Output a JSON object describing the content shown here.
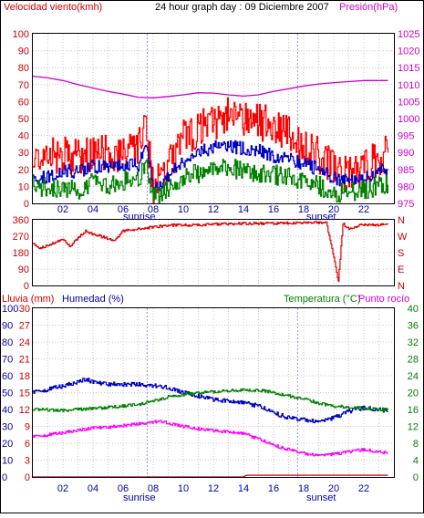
{
  "header": {
    "wind_label": "Velocidad viento(kmh)",
    "title": "24 hour graph day : 09 Diciembre 2007",
    "pressure_label": "Presión(hPa)"
  },
  "bottom_header": {
    "rain_label": "Lluvia (mm)",
    "humidity_label": "Humedad (%)",
    "temperature_label": "Temperatura (°C)",
    "dewpoint_label": "Punto rocío"
  },
  "sun_labels": {
    "sunrise": "sunrise",
    "sunset": "sunset"
  },
  "colors": {
    "wind_gust": "#ff0000",
    "wind_speed": "#0000c0",
    "wind_low": "#008000",
    "pressure": "#cc00cc",
    "direction": "#e00000",
    "humidity": "#0000c0",
    "temperature": "#008000",
    "dewpoint": "#ff00ff",
    "rain": "#c00000",
    "label_red": "#cc0000",
    "label_magenta": "#cc00cc",
    "label_blue": "#0000aa",
    "label_green": "#008000"
  },
  "chart_data": [
    {
      "id": "wind_pressure",
      "type": "line",
      "x_ticks": [
        "02",
        "04",
        "06",
        "08",
        "10",
        "12",
        "14",
        "16",
        "18",
        "20",
        "22"
      ],
      "x_tick_hours": [
        2,
        4,
        6,
        8,
        10,
        12,
        14,
        16,
        18,
        20,
        22
      ],
      "xlim": [
        0,
        24
      ],
      "y_left_ticks": [
        "0",
        "10",
        "20",
        "30",
        "40",
        "50",
        "60",
        "70",
        "80",
        "90",
        "100"
      ],
      "ylim_left": [
        0,
        100
      ],
      "y_right_ticks": [
        "975",
        "980",
        "985",
        "990",
        "995",
        "1000",
        "1005",
        "1010",
        "1015",
        "1020",
        "1025"
      ],
      "ylim_right": [
        975,
        1025
      ],
      "sunrise_hour": 7.6,
      "sunset_hour": 17.6,
      "grid": true,
      "series": [
        {
          "key": "gust",
          "axis": "left",
          "x": [
            0,
            1,
            2,
            3,
            4,
            5,
            6,
            7,
            7.5,
            8,
            9,
            10,
            11,
            12,
            13,
            14,
            15,
            16,
            17,
            18,
            19,
            20,
            21,
            22,
            23,
            23.6
          ],
          "values": [
            24,
            27,
            29,
            27,
            31,
            30,
            29,
            34,
            45,
            8,
            22,
            38,
            44,
            48,
            53,
            50,
            48,
            46,
            40,
            32,
            28,
            20,
            16,
            20,
            27,
            30
          ]
        },
        {
          "key": "speed",
          "axis": "left",
          "x": [
            0,
            1,
            2,
            3,
            4,
            5,
            6,
            7,
            7.5,
            8,
            9,
            10,
            11,
            12,
            13,
            14,
            15,
            16,
            17,
            18,
            19,
            20,
            21,
            22,
            23,
            23.6
          ],
          "values": [
            15,
            16,
            20,
            18,
            22,
            21,
            22,
            23,
            35,
            8,
            16,
            25,
            30,
            33,
            34,
            32,
            31,
            28,
            27,
            23,
            20,
            15,
            13,
            15,
            19,
            20
          ]
        },
        {
          "key": "low",
          "axis": "left",
          "x": [
            0,
            1,
            2,
            3,
            4,
            5,
            6,
            7,
            7.5,
            8,
            9,
            10,
            11,
            12,
            13,
            14,
            15,
            16,
            17,
            18,
            19,
            20,
            21,
            22,
            23,
            23.6
          ],
          "values": [
            10,
            8,
            10,
            7,
            12,
            11,
            13,
            14,
            22,
            3,
            9,
            15,
            18,
            20,
            21,
            19,
            18,
            17,
            15,
            12,
            10,
            7,
            6,
            8,
            10,
            11
          ]
        },
        {
          "key": "pressure",
          "axis": "right",
          "x": [
            0,
            1,
            2,
            3,
            4,
            5,
            6,
            7,
            8,
            9,
            10,
            11,
            12,
            13,
            14,
            15,
            16,
            17,
            18,
            19,
            20,
            21,
            22,
            23,
            23.6
          ],
          "values": [
            1012.5,
            1012,
            1011.2,
            1010,
            1009,
            1008,
            1007.2,
            1006.3,
            1006.1,
            1006.5,
            1007,
            1007.6,
            1007.5,
            1007,
            1006.6,
            1007,
            1008,
            1008.8,
            1009.6,
            1010.2,
            1010.6,
            1010.9,
            1011.2,
            1011.2,
            1011.2
          ]
        }
      ]
    },
    {
      "id": "wind_direction",
      "type": "line",
      "xlim": [
        0,
        24
      ],
      "y_ticks": [
        "360",
        "270",
        "180",
        "90",
        "0"
      ],
      "ylim": [
        0,
        360
      ],
      "compass_ticks": [
        "N",
        "W",
        "S",
        "E",
        "N"
      ],
      "grid": true,
      "series": [
        {
          "key": "direction",
          "x": [
            0,
            0.4,
            1,
            1.5,
            2,
            2.5,
            3,
            3.5,
            4,
            4.5,
            5,
            5.5,
            6,
            7,
            8,
            9,
            10,
            12,
            14,
            16,
            18,
            19.5,
            20,
            20.3,
            20.6,
            21,
            22,
            23,
            23.6
          ],
          "values": [
            230,
            200,
            220,
            235,
            250,
            215,
            260,
            300,
            280,
            270,
            255,
            250,
            300,
            310,
            320,
            330,
            330,
            335,
            340,
            340,
            345,
            345,
            150,
            20,
            340,
            310,
            335,
            330,
            335
          ]
        }
      ]
    },
    {
      "id": "temp_humidity_rain",
      "type": "line",
      "x_ticks": [
        "02",
        "04",
        "06",
        "08",
        "10",
        "12",
        "14",
        "16",
        "18",
        "20",
        "22"
      ],
      "x_tick_hours": [
        2,
        4,
        6,
        8,
        10,
        12,
        14,
        16,
        18,
        20,
        22
      ],
      "xlim": [
        0,
        24
      ],
      "y_humidity_ticks": [
        "0",
        "10",
        "20",
        "30",
        "40",
        "50",
        "60",
        "70",
        "80",
        "90",
        "100"
      ],
      "ylim_humidity": [
        0,
        100
      ],
      "y_rain_ticks": [
        "0",
        "3",
        "6",
        "9",
        "12",
        "15",
        "18",
        "21",
        "24",
        "27",
        "30"
      ],
      "ylim_rain": [
        0,
        30
      ],
      "y_temp_ticks": [
        "0",
        "4",
        "8",
        "12",
        "16",
        "20",
        "24",
        "28",
        "32",
        "36",
        "40"
      ],
      "ylim_temp": [
        0,
        40
      ],
      "sunrise_hour": 7.6,
      "sunset_hour": 17.6,
      "grid": true,
      "series": [
        {
          "key": "humidity",
          "axis": "humidity",
          "x": [
            0,
            1,
            2,
            3,
            3.5,
            4,
            5,
            6,
            7,
            8,
            9,
            10,
            11,
            12,
            13,
            14,
            15,
            16,
            17,
            18,
            19,
            20,
            21,
            22,
            23,
            23.6
          ],
          "values": [
            50,
            52,
            54,
            56,
            58,
            56,
            55,
            55,
            55,
            54,
            53,
            50,
            48,
            46,
            45,
            44,
            42,
            38,
            35,
            34,
            33,
            35,
            39,
            41,
            40,
            39
          ]
        },
        {
          "key": "temperature",
          "axis": "temp",
          "x": [
            0,
            1,
            2,
            3,
            4,
            5,
            6,
            7,
            8,
            9,
            10,
            11,
            12,
            13,
            14,
            15,
            16,
            17,
            18,
            19,
            20,
            21,
            22,
            23,
            23.6
          ],
          "values": [
            16,
            15.9,
            15.8,
            16,
            16.2,
            16.5,
            16.8,
            17.2,
            18,
            19,
            19.5,
            20,
            20.2,
            20.5,
            20.6,
            20.6,
            20,
            19.2,
            18.5,
            17.5,
            16.8,
            16.5,
            16.3,
            16,
            16
          ]
        },
        {
          "key": "dewpoint",
          "axis": "temp",
          "x": [
            0,
            1,
            2,
            3,
            4,
            5,
            6,
            7,
            8,
            8.5,
            9,
            10,
            11,
            12,
            13,
            14,
            15,
            16,
            17,
            18,
            19,
            20,
            21,
            22,
            23,
            23.6
          ],
          "values": [
            9.5,
            10,
            10.5,
            11,
            11.6,
            11.8,
            12.2,
            12.6,
            13,
            13.2,
            12.8,
            12,
            11.4,
            11,
            10.7,
            10.3,
            9,
            7.5,
            6.5,
            5.6,
            5.2,
            5.4,
            6,
            6.5,
            6,
            5.6
          ]
        },
        {
          "key": "rain",
          "axis": "rain",
          "x": [
            0,
            14,
            14.2,
            23.6
          ],
          "values": [
            0,
            0,
            0.3,
            0.3
          ]
        }
      ]
    }
  ]
}
